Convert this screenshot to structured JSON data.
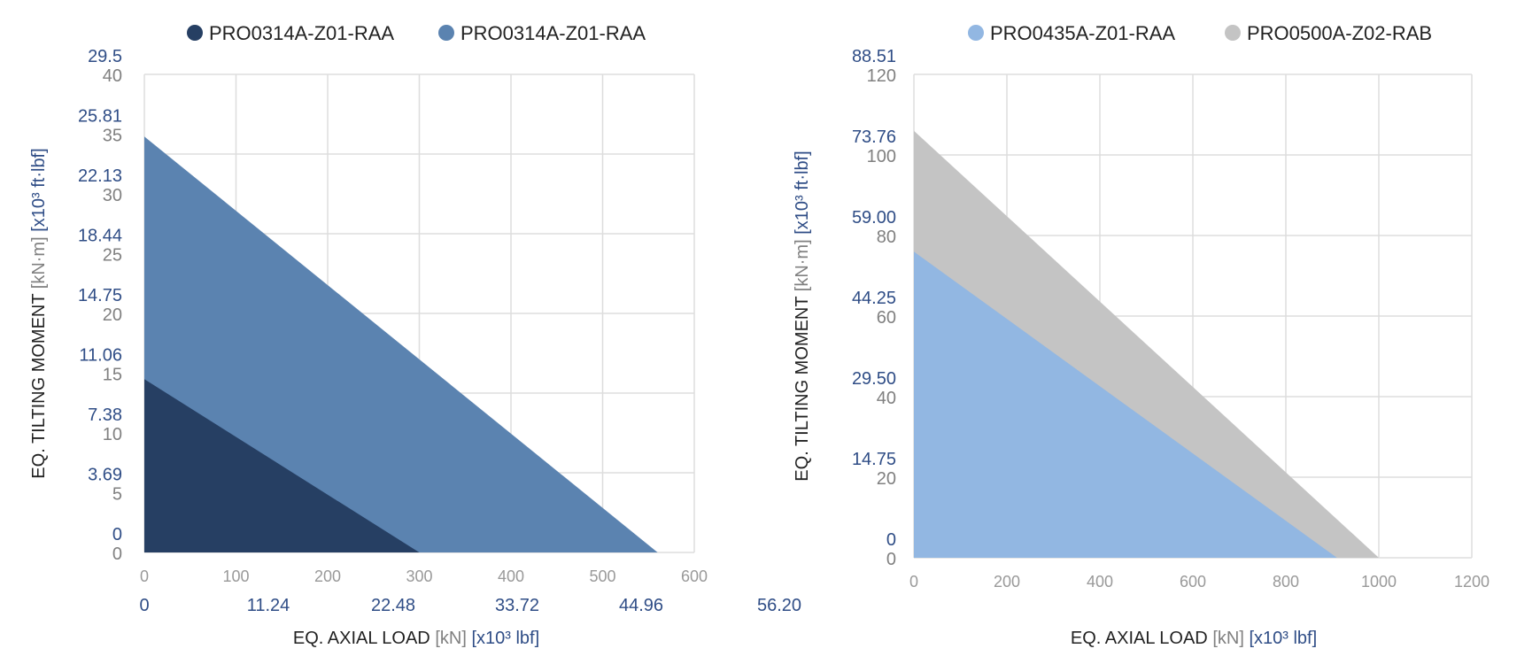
{
  "chart_data": [
    {
      "type": "area",
      "legend": [
        {
          "name": "PRO0314A-Z01-RAA",
          "color": "#263f63"
        },
        {
          "name": "PRO0314A-Z01-RAA",
          "color": "#5b83b0"
        }
      ],
      "series": [
        {
          "name": "PRO0314A-Z01-RAA",
          "color": "#5b83b0",
          "x": [
            0,
            560
          ],
          "y": [
            34.8,
            0
          ]
        },
        {
          "name": "PRO0314A-Z01-RAA",
          "color": "#263f63",
          "x": [
            0,
            300
          ],
          "y": [
            14.5,
            0
          ]
        }
      ],
      "xlim": [
        0,
        600
      ],
      "ylim": [
        0,
        40
      ],
      "x_ticks": [
        "0",
        "100",
        "200",
        "300",
        "400",
        "500",
        "600"
      ],
      "x_ticks_secondary": [
        "0",
        "11.24",
        "22.48",
        "33.72",
        "44.96",
        "56.20"
      ],
      "y_ticks": [
        "0",
        "5",
        "10",
        "15",
        "20",
        "25",
        "30",
        "35",
        "40"
      ],
      "y_ticks_secondary": [
        "0",
        "3.69",
        "7.38",
        "11.06",
        "14.75",
        "18.44",
        "22.13",
        "25.81",
        "29.5"
      ],
      "xlabel": {
        "main": "EQ. AXIAL LOAD",
        "unit": "[kN]",
        "unit2": "[x10³ lbf]"
      },
      "ylabel": {
        "main": "EQ. TILTING MOMENT",
        "unit": "[kN·m]",
        "unit2": "[x10³ ft·lbf]"
      },
      "grid": true
    },
    {
      "type": "area",
      "legend": [
        {
          "name": "PRO0435A-Z01-RAA",
          "color": "#92b7e2"
        },
        {
          "name": "PRO0500A-Z02-RAB",
          "color": "#c4c4c4"
        }
      ],
      "series": [
        {
          "name": "PRO0500A-Z02-RAB",
          "color": "#c4c4c4",
          "x": [
            0,
            1000
          ],
          "y": [
            106,
            0
          ]
        },
        {
          "name": "PRO0435A-Z01-RAA",
          "color": "#92b7e2",
          "x": [
            0,
            910
          ],
          "y": [
            76,
            0
          ]
        }
      ],
      "xlim": [
        0,
        1200
      ],
      "ylim": [
        0,
        120
      ],
      "x_ticks": [
        "0",
        "200",
        "400",
        "600",
        "800",
        "1000",
        "1200"
      ],
      "x_ticks_secondary": [],
      "y_ticks": [
        "0",
        "20",
        "40",
        "60",
        "80",
        "100",
        "120"
      ],
      "y_ticks_secondary": [
        "0",
        "14.75",
        "29.50",
        "44.25",
        "59.00",
        "73.76",
        "88.51"
      ],
      "xlabel": {
        "main": "EQ. AXIAL LOAD",
        "unit": "[kN]",
        "unit2": "[x10³ lbf]"
      },
      "ylabel": {
        "main": "EQ. TILTING MOMENT",
        "unit": "[kN·m]",
        "unit2": "[x10³ ft·lbf]"
      },
      "grid": true
    }
  ],
  "colors": {
    "secondary_label": "#2f4d86",
    "primary_label": "#808080",
    "title": "#222222",
    "grid": "#dddddd"
  }
}
